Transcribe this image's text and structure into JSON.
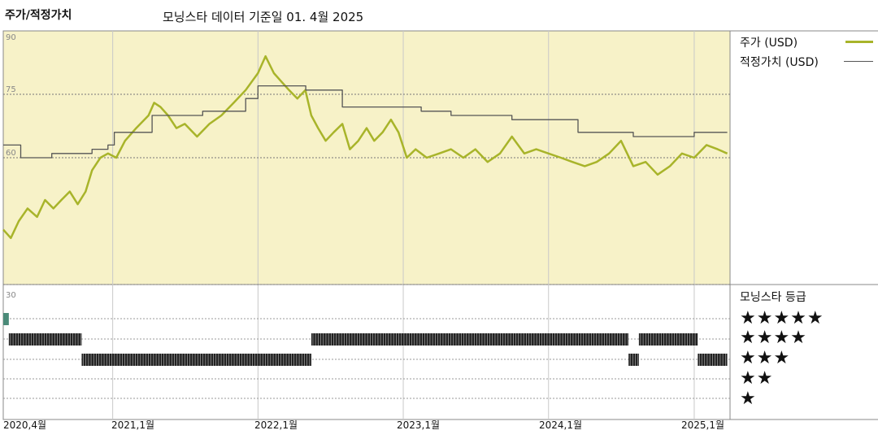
{
  "header": {
    "title": "주가/적정가치",
    "subtitle": "모닝스타 데이터 기준일 01. 4월 2025"
  },
  "legend": {
    "price_label": "주가 (USD)",
    "fair_label": "적정가치 (USD)"
  },
  "rating_panel": {
    "title": "모닝스타 등급",
    "star_labels": [
      "★★★★★",
      "★★★★",
      "★★★",
      "★★",
      "★"
    ]
  },
  "colors": {
    "price": "#a8b42a",
    "fair": "#555555",
    "plot_bg": "#f7f2c8",
    "bar": "#222222",
    "teal": "#4a8a78"
  },
  "chart_data": {
    "type": "line",
    "title": "주가/적정가치",
    "subtitle": "모닝스타 데이터 기준일 01. 4월 2025",
    "xlim": [
      "2020-04-01",
      "2025-04-01"
    ],
    "ylim": [
      30,
      90
    ],
    "yticks": [
      30,
      60,
      75,
      90
    ],
    "ytick_labels": [
      "30",
      "60",
      "75",
      "90"
    ],
    "xticks": [
      "2020-04-01",
      "2021-01-01",
      "2022-01-01",
      "2023-01-01",
      "2024-01-01",
      "2025-01-01"
    ],
    "xtick_labels": [
      "2020,4월",
      "2021,1월",
      "2022,1월",
      "2023,1월",
      "2024,1월",
      "2025,1월"
    ],
    "grid": true,
    "legend_placement": "right",
    "series": [
      {
        "name": "주가 (USD)",
        "points": [
          [
            "2020-04-01",
            43
          ],
          [
            "2020-04-20",
            41
          ],
          [
            "2020-05-10",
            45
          ],
          [
            "2020-06-01",
            48
          ],
          [
            "2020-06-25",
            46
          ],
          [
            "2020-07-15",
            50
          ],
          [
            "2020-08-05",
            48
          ],
          [
            "2020-08-25",
            50
          ],
          [
            "2020-09-15",
            52
          ],
          [
            "2020-10-05",
            49
          ],
          [
            "2020-10-25",
            52
          ],
          [
            "2020-11-10",
            57
          ],
          [
            "2020-12-01",
            60
          ],
          [
            "2020-12-20",
            61
          ],
          [
            "2021-01-10",
            60
          ],
          [
            "2021-02-01",
            64
          ],
          [
            "2021-03-01",
            67
          ],
          [
            "2021-04-01",
            70
          ],
          [
            "2021-04-15",
            73
          ],
          [
            "2021-05-01",
            72
          ],
          [
            "2021-05-20",
            70
          ],
          [
            "2021-06-10",
            67
          ],
          [
            "2021-07-01",
            68
          ],
          [
            "2021-08-01",
            65
          ],
          [
            "2021-09-01",
            68
          ],
          [
            "2021-10-01",
            70
          ],
          [
            "2021-11-01",
            73
          ],
          [
            "2021-12-01",
            76
          ],
          [
            "2022-01-01",
            80
          ],
          [
            "2022-01-20",
            84
          ],
          [
            "2022-02-10",
            80
          ],
          [
            "2022-03-01",
            78
          ],
          [
            "2022-03-20",
            76
          ],
          [
            "2022-04-10",
            74
          ],
          [
            "2022-04-30",
            76
          ],
          [
            "2022-05-15",
            70
          ],
          [
            "2022-06-01",
            67
          ],
          [
            "2022-06-20",
            64
          ],
          [
            "2022-07-10",
            66
          ],
          [
            "2022-08-01",
            68
          ],
          [
            "2022-08-20",
            62
          ],
          [
            "2022-09-10",
            64
          ],
          [
            "2022-10-01",
            67
          ],
          [
            "2022-10-20",
            64
          ],
          [
            "2022-11-10",
            66
          ],
          [
            "2022-12-01",
            69
          ],
          [
            "2022-12-20",
            66
          ],
          [
            "2023-01-10",
            60
          ],
          [
            "2023-02-01",
            62
          ],
          [
            "2023-03-01",
            60
          ],
          [
            "2023-04-01",
            61
          ],
          [
            "2023-05-01",
            62
          ],
          [
            "2023-06-01",
            60
          ],
          [
            "2023-07-01",
            62
          ],
          [
            "2023-08-01",
            59
          ],
          [
            "2023-09-01",
            61
          ],
          [
            "2023-10-01",
            65
          ],
          [
            "2023-11-01",
            61
          ],
          [
            "2023-12-01",
            62
          ],
          [
            "2024-01-01",
            61
          ],
          [
            "2024-02-01",
            60
          ],
          [
            "2024-03-01",
            59
          ],
          [
            "2024-04-01",
            58
          ],
          [
            "2024-05-01",
            59
          ],
          [
            "2024-06-01",
            61
          ],
          [
            "2024-07-01",
            64
          ],
          [
            "2024-08-01",
            58
          ],
          [
            "2024-09-01",
            59
          ],
          [
            "2024-10-01",
            56
          ],
          [
            "2024-11-01",
            58
          ],
          [
            "2024-12-01",
            61
          ],
          [
            "2025-01-01",
            60
          ],
          [
            "2025-02-01",
            63
          ],
          [
            "2025-03-01",
            62
          ],
          [
            "2025-03-25",
            61
          ]
        ]
      },
      {
        "name": "적정가치 (USD)",
        "step": true,
        "points": [
          [
            "2020-04-01",
            63
          ],
          [
            "2020-05-15",
            60
          ],
          [
            "2020-08-01",
            61
          ],
          [
            "2020-11-10",
            62
          ],
          [
            "2020-12-20",
            63
          ],
          [
            "2021-01-05",
            66
          ],
          [
            "2021-04-10",
            70
          ],
          [
            "2021-08-15",
            71
          ],
          [
            "2021-12-01",
            74
          ],
          [
            "2022-01-01",
            77
          ],
          [
            "2022-05-01",
            76
          ],
          [
            "2022-08-01",
            72
          ],
          [
            "2023-02-15",
            71
          ],
          [
            "2023-05-01",
            70
          ],
          [
            "2023-10-01",
            69
          ],
          [
            "2024-03-15",
            66
          ],
          [
            "2024-08-01",
            65
          ],
          [
            "2025-01-01",
            66
          ],
          [
            "2025-03-25",
            66
          ]
        ]
      }
    ],
    "ratings": {
      "levels": [
        "★★★★★",
        "★★★★",
        "★★★",
        "★★",
        "★"
      ],
      "periods": [
        {
          "stars": 5,
          "start": "2020-04-01",
          "end": "2020-04-15"
        },
        {
          "stars": 4,
          "start": "2020-04-15",
          "end": "2020-10-15"
        },
        {
          "stars": 3,
          "start": "2020-10-15",
          "end": "2022-05-15"
        },
        {
          "stars": 4,
          "start": "2022-05-15",
          "end": "2024-07-20"
        },
        {
          "stars": 3,
          "start": "2024-07-20",
          "end": "2024-08-15"
        },
        {
          "stars": 4,
          "start": "2024-08-15",
          "end": "2025-01-10"
        },
        {
          "stars": 3,
          "start": "2025-01-10",
          "end": "2025-03-25"
        }
      ]
    }
  }
}
